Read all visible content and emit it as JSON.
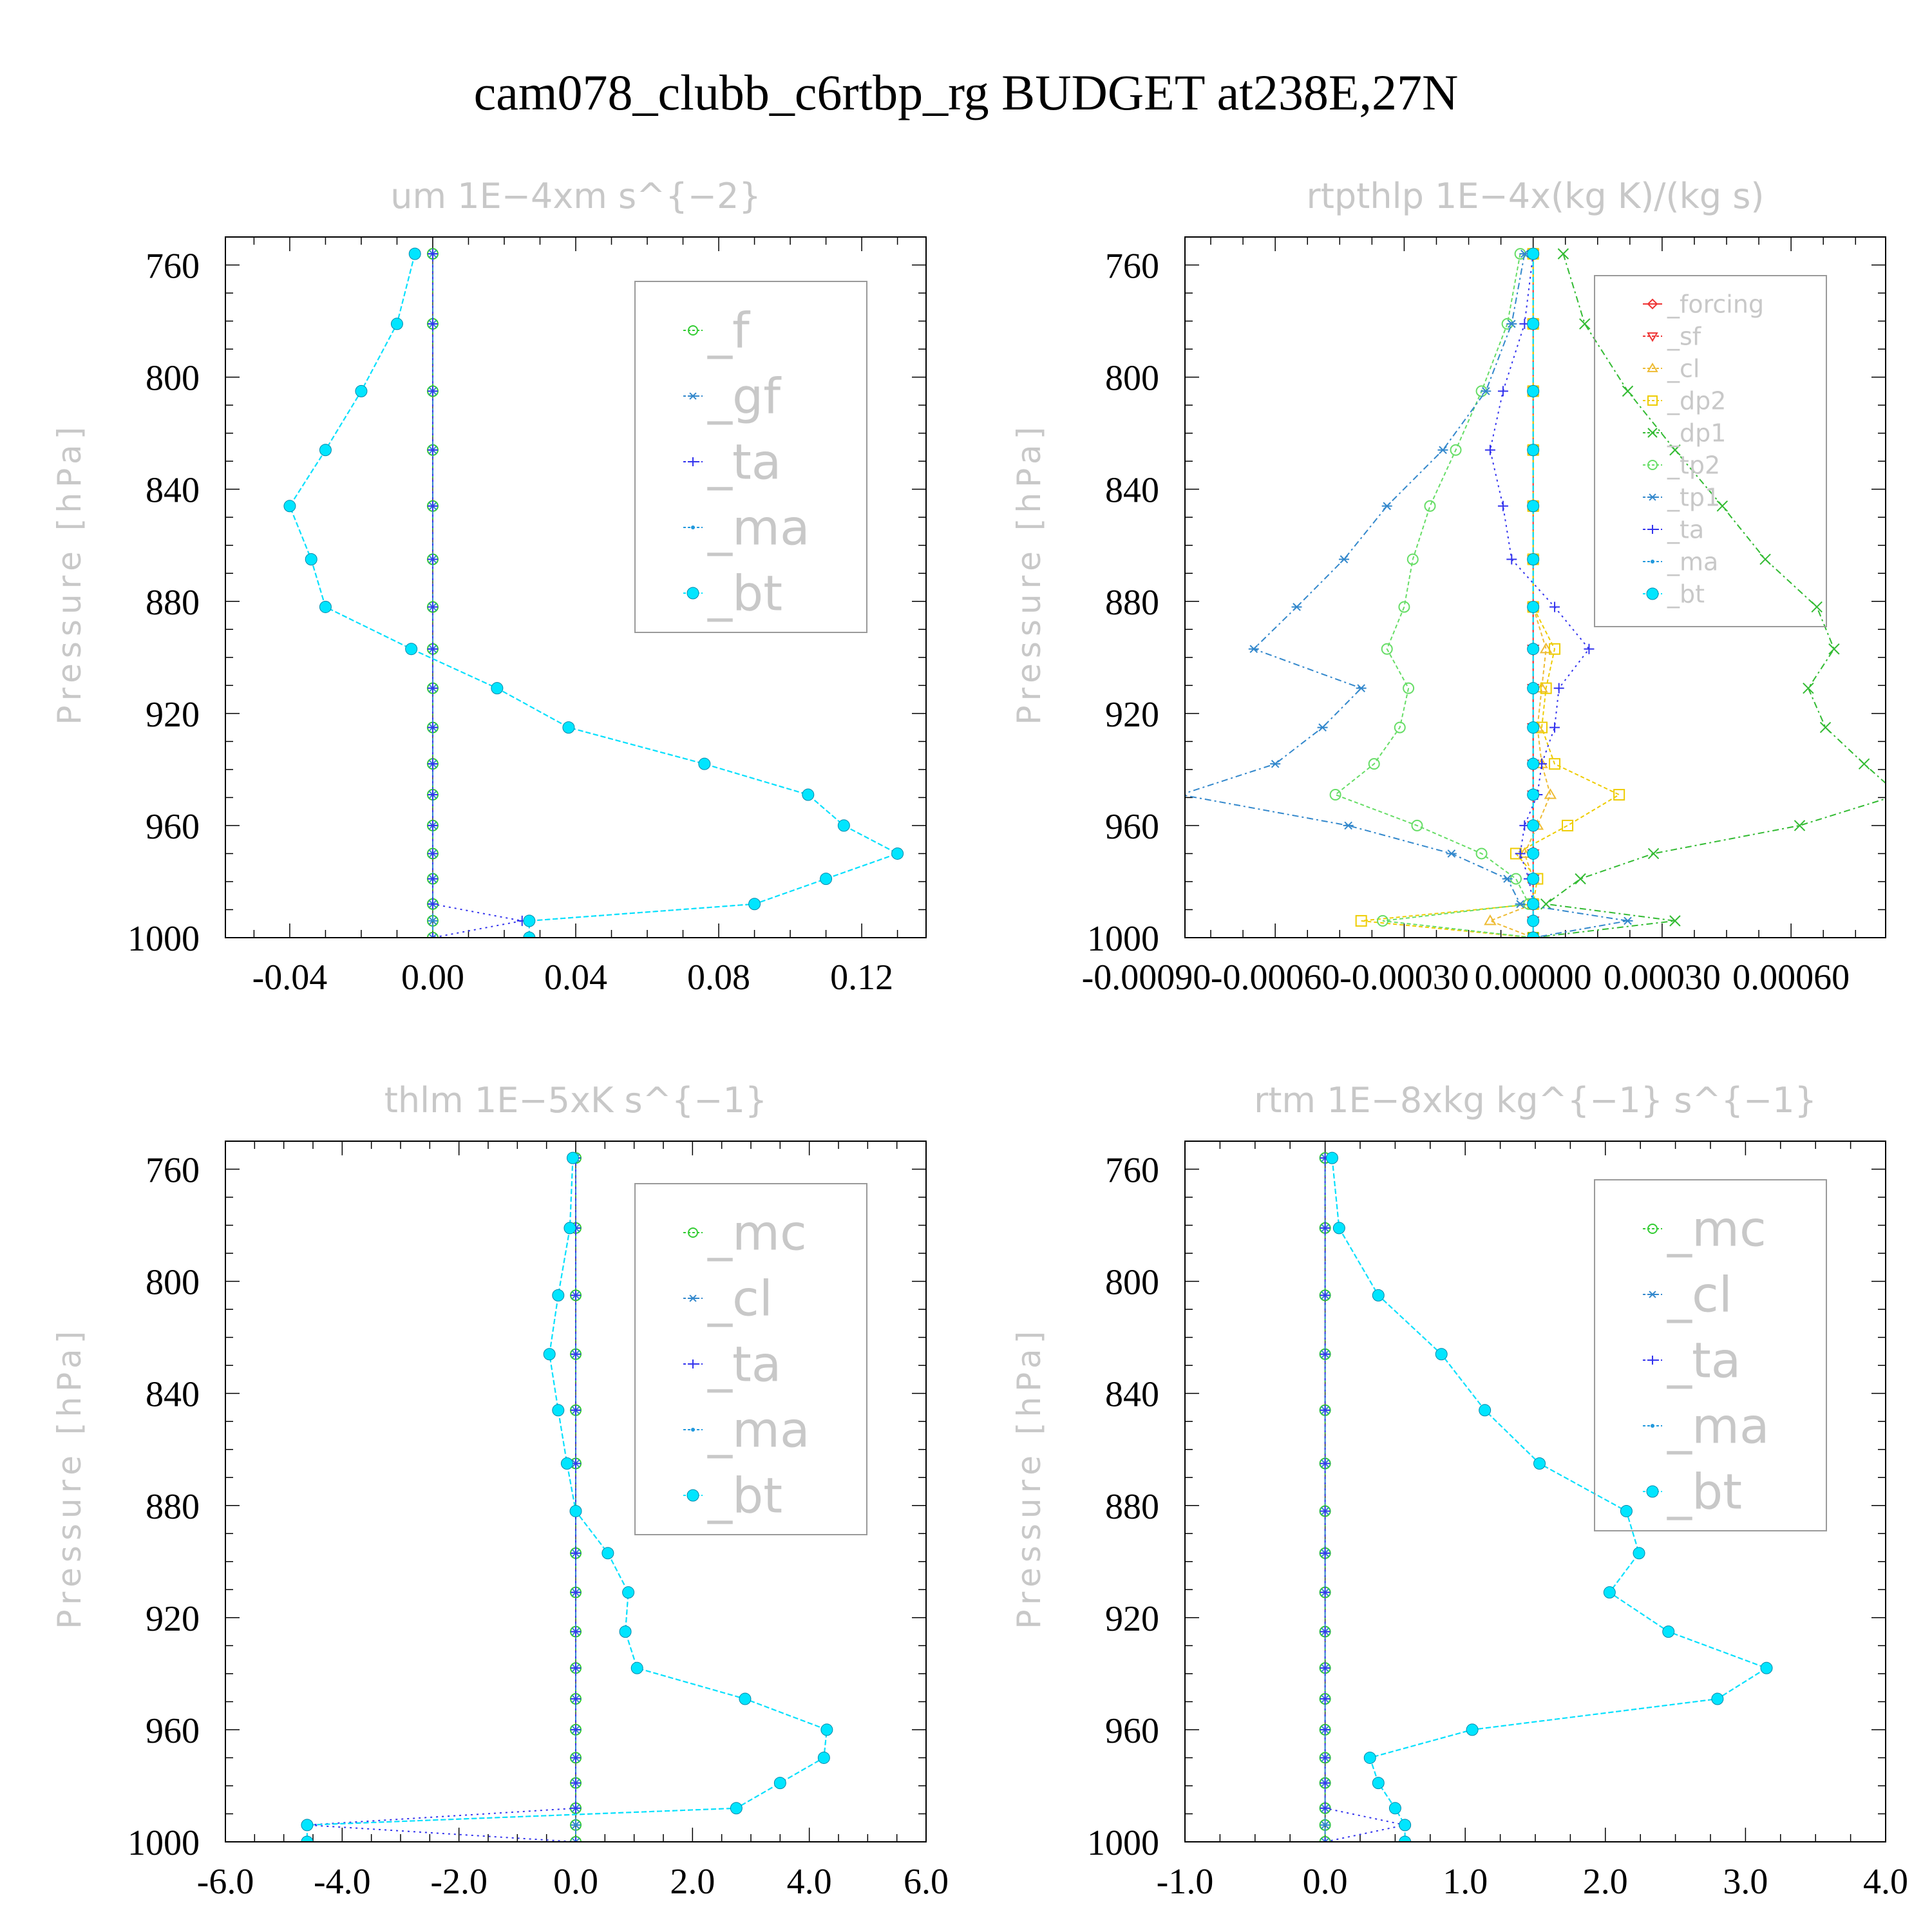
{
  "title": "cam078_clubb_c6rtbp_rg  BUDGET at238E,27N",
  "chart_data": [
    {
      "type": "line",
      "title": "um   1E−4xm s^{−2}",
      "ylabel": "Pressure [hPa]",
      "ylim": [
        750,
        1000
      ],
      "y_inverted": true,
      "xlim": [
        -0.058,
        0.138
      ],
      "xticks": [
        -0.04,
        0.0,
        0.04,
        0.08,
        0.12
      ],
      "xtick_labels": [
        "-0.04",
        "0.00",
        "0.04",
        "0.08",
        "0.12"
      ],
      "yticks": [
        760,
        800,
        840,
        880,
        920,
        960,
        1000
      ],
      "legend_position": "top-right",
      "y": [
        756,
        781,
        805,
        826,
        846,
        865,
        882,
        897,
        911,
        925,
        938,
        949,
        960,
        970,
        979,
        988,
        994,
        1000
      ],
      "series": [
        {
          "name": "_f",
          "color": "#33cc33",
          "marker": "circle-open",
          "dash": "4,4",
          "x": [
            0,
            0,
            0,
            0,
            0,
            0,
            0,
            0,
            0,
            0,
            0,
            0,
            0,
            0,
            0,
            0,
            0,
            0
          ]
        },
        {
          "name": "_gf",
          "color": "#3388cc",
          "marker": "asterisk",
          "dash": "10,6",
          "x": [
            0,
            0,
            0,
            0,
            0,
            0,
            0,
            0,
            0,
            0,
            0,
            0,
            0,
            0,
            0,
            0,
            0,
            0
          ]
        },
        {
          "name": "_ta",
          "color": "#3333ee",
          "marker": "plus",
          "dash": "3,6",
          "x": [
            0,
            0,
            0,
            0,
            0,
            0,
            0,
            0,
            0,
            0,
            0,
            0,
            0,
            0,
            0,
            0,
            0.025,
            0
          ]
        },
        {
          "name": "_ma",
          "color": "#2299dd",
          "marker": "dot",
          "dash": "8,4",
          "x": [
            -0.005,
            -0.01,
            -0.02,
            -0.03,
            -0.04,
            -0.034,
            -0.03,
            -0.006,
            0.018,
            0.038,
            0.076,
            0.105,
            0.115,
            0.13,
            0.11,
            0.09,
            0.027,
            0.027
          ]
        },
        {
          "name": "_bt",
          "color": "#00e5ff",
          "marker": "filled-circle",
          "dash": "8,4",
          "x": [
            -0.005,
            -0.01,
            -0.02,
            -0.03,
            -0.04,
            -0.034,
            -0.03,
            -0.006,
            0.018,
            0.038,
            0.076,
            0.105,
            0.115,
            0.13,
            0.11,
            0.09,
            0.027,
            0.027
          ]
        }
      ]
    },
    {
      "type": "line",
      "title": "rtpthlp   1E−4x(kg K)/(kg s)",
      "ylabel": "Pressure [hPa]",
      "ylim": [
        750,
        1000
      ],
      "y_inverted": true,
      "xlim": [
        -0.00081,
        0.00082
      ],
      "xticks": [
        -0.0009,
        -0.0006,
        -0.0003,
        0.0,
        0.0003,
        0.0006
      ],
      "xtick_labels": [
        "-0.00090",
        "-0.00060",
        "-0.00030",
        "0.00000",
        "0.00030",
        "0.00060"
      ],
      "yticks": [
        760,
        800,
        840,
        880,
        920,
        960,
        1000
      ],
      "legend_position": "top-right",
      "y": [
        756,
        781,
        805,
        826,
        846,
        865,
        882,
        897,
        911,
        925,
        938,
        949,
        960,
        970,
        979,
        988,
        994,
        1000
      ],
      "series": [
        {
          "name": "_forcing",
          "color": "#ee3333",
          "marker": "diamond",
          "dash": "",
          "x": [
            0,
            0,
            0,
            0,
            0,
            0,
            0,
            0,
            0,
            0,
            0,
            0,
            0,
            0,
            0,
            0,
            0,
            0
          ]
        },
        {
          "name": "_sf",
          "color": "#ee3333",
          "marker": "triangle-down",
          "dash": "6,4",
          "x": [
            0,
            0,
            0,
            0,
            0,
            0,
            0,
            0,
            0,
            0,
            0,
            0,
            0,
            0,
            0,
            0,
            0,
            0
          ]
        },
        {
          "name": "_cl",
          "color": "#eebb33",
          "marker": "triangle-up",
          "dash": "6,4",
          "x": [
            0,
            0,
            0,
            0,
            0,
            0,
            0,
            3e-05,
            2e-05,
            1e-05,
            2e-05,
            4e-05,
            1e-05,
            -2e-05,
            0,
            0,
            -0.0001,
            0
          ]
        },
        {
          "name": "_dp2",
          "color": "#eecc00",
          "marker": "square",
          "dash": "6,4",
          "x": [
            0,
            0,
            0,
            0,
            0,
            0,
            0,
            5e-05,
            3e-05,
            2e-05,
            5e-05,
            0.0002,
            8e-05,
            -4e-05,
            1e-05,
            0,
            -0.0004,
            0
          ]
        },
        {
          "name": "_dp1",
          "color": "#33bb33",
          "marker": "x",
          "dash": "10,5,3,5",
          "x": [
            7e-05,
            0.00012,
            0.00022,
            0.00033,
            0.00044,
            0.00054,
            0.00066,
            0.0007,
            0.00064,
            0.00068,
            0.00077,
            0.00085,
            0.00062,
            0.00028,
            0.00011,
            3e-05,
            0.00033,
            0
          ]
        },
        {
          "name": "_tp2",
          "color": "#66dd66",
          "marker": "circle-open",
          "dash": "6,4",
          "x": [
            -3e-05,
            -6e-05,
            -0.00012,
            -0.00018,
            -0.00024,
            -0.00028,
            -0.0003,
            -0.00034,
            -0.00029,
            -0.00031,
            -0.00037,
            -0.00046,
            -0.00027,
            -0.00012,
            -4e-05,
            -1e-05,
            -0.00035,
            0
          ]
        },
        {
          "name": "_tp1",
          "color": "#3388cc",
          "marker": "asterisk",
          "dash": "10,5,3,5",
          "x": [
            -2e-05,
            -5e-05,
            -0.00011,
            -0.00021,
            -0.00034,
            -0.00044,
            -0.00055,
            -0.00065,
            -0.0004,
            -0.00049,
            -0.0006,
            -0.00082,
            -0.00043,
            -0.00019,
            -6e-05,
            -3e-05,
            0.00022,
            0
          ]
        },
        {
          "name": "_ta",
          "color": "#3333ee",
          "marker": "plus",
          "dash": "3,6",
          "x": [
            0,
            -2e-05,
            -7e-05,
            -0.0001,
            -7e-05,
            -5e-05,
            5e-05,
            0.00013,
            6e-05,
            5e-05,
            2e-05,
            1e-05,
            -2e-05,
            -3e-05,
            -1e-05,
            0,
            0,
            0
          ]
        },
        {
          "name": "_ma",
          "color": "#2299dd",
          "marker": "dot",
          "dash": "8,4",
          "x": [
            0,
            0,
            0,
            0,
            0,
            0,
            0,
            0,
            0,
            0,
            0,
            0,
            0,
            0,
            0,
            0,
            0,
            0
          ]
        },
        {
          "name": "_bt",
          "color": "#00e5ff",
          "marker": "filled-circle",
          "dash": "8,4",
          "x": [
            0,
            0,
            0,
            0,
            0,
            0,
            0,
            0,
            0,
            0,
            0,
            0,
            0,
            0,
            0,
            0,
            0,
            0
          ]
        }
      ]
    },
    {
      "type": "line",
      "title": "thlm   1E−5xK s^{−1}",
      "ylabel": "Pressure [hPa]",
      "ylim": [
        750,
        1000
      ],
      "y_inverted": true,
      "xlim": [
        -6.0,
        6.0
      ],
      "xticks": [
        -6.0,
        -4.0,
        -2.0,
        0.0,
        2.0,
        4.0,
        6.0
      ],
      "xtick_labels": [
        "-6.0",
        "-4.0",
        "-2.0",
        "0.0",
        "2.0",
        "4.0",
        "6.0"
      ],
      "yticks": [
        760,
        800,
        840,
        880,
        920,
        960,
        1000
      ],
      "legend_position": "top-right",
      "y": [
        756,
        781,
        805,
        826,
        846,
        865,
        882,
        897,
        911,
        925,
        938,
        949,
        960,
        970,
        979,
        988,
        994,
        1000
      ],
      "series": [
        {
          "name": "_mc",
          "color": "#33cc33",
          "marker": "circle-open",
          "dash": "4,4",
          "x": [
            0,
            0,
            0,
            0,
            0,
            0,
            0,
            0,
            0,
            0,
            0,
            0,
            0,
            0,
            0,
            0,
            0,
            0
          ]
        },
        {
          "name": "_cl",
          "color": "#3388cc",
          "marker": "asterisk",
          "dash": "10,6",
          "x": [
            0,
            0,
            0,
            0,
            0,
            0,
            0,
            0,
            0,
            0,
            0,
            0,
            0,
            0,
            0,
            0,
            0,
            0
          ]
        },
        {
          "name": "_ta",
          "color": "#3333ee",
          "marker": "plus",
          "dash": "3,6",
          "x": [
            0,
            0,
            0,
            0,
            0,
            0,
            0,
            0,
            0,
            0,
            0,
            0,
            0,
            0,
            0,
            0,
            -4.6,
            0
          ]
        },
        {
          "name": "_ma",
          "color": "#2299dd",
          "marker": "dot",
          "dash": "8,4",
          "x": [
            -0.05,
            -0.1,
            -0.3,
            -0.45,
            -0.3,
            -0.15,
            0,
            0.55,
            0.9,
            0.85,
            1.05,
            2.9,
            4.3,
            4.25,
            3.5,
            2.75,
            -4.6,
            -4.6
          ]
        },
        {
          "name": "_bt",
          "color": "#00e5ff",
          "marker": "filled-circle",
          "dash": "8,4",
          "x": [
            -0.05,
            -0.1,
            -0.3,
            -0.45,
            -0.3,
            -0.15,
            0,
            0.55,
            0.9,
            0.85,
            1.05,
            2.9,
            4.3,
            4.25,
            3.5,
            2.75,
            -4.6,
            -4.6
          ]
        }
      ]
    },
    {
      "type": "line",
      "title": "rtm   1E−8xkg kg^{−1} s^{−1}",
      "ylabel": "Pressure [hPa]",
      "ylim": [
        750,
        1000
      ],
      "y_inverted": true,
      "xlim": [
        -1.0,
        4.0
      ],
      "xticks": [
        -1.0,
        0.0,
        1.0,
        2.0,
        3.0,
        4.0
      ],
      "xtick_labels": [
        "-1.0",
        "0.0",
        "1.0",
        "2.0",
        "3.0",
        "4.0"
      ],
      "yticks": [
        760,
        800,
        840,
        880,
        920,
        960,
        1000
      ],
      "legend_position": "top-right",
      "y": [
        756,
        781,
        805,
        826,
        846,
        865,
        882,
        897,
        911,
        925,
        938,
        949,
        960,
        970,
        979,
        988,
        994,
        1000
      ],
      "series": [
        {
          "name": "_mc",
          "color": "#33cc33",
          "marker": "circle-open",
          "dash": "4,4",
          "x": [
            0,
            0,
            0,
            0,
            0,
            0,
            0,
            0,
            0,
            0,
            0,
            0,
            0,
            0,
            0,
            0,
            0,
            0
          ]
        },
        {
          "name": "_cl",
          "color": "#3388cc",
          "marker": "asterisk",
          "dash": "10,6",
          "x": [
            0,
            0,
            0,
            0,
            0,
            0,
            0,
            0,
            0,
            0,
            0,
            0,
            0,
            0,
            0,
            0,
            0,
            0
          ]
        },
        {
          "name": "_ta",
          "color": "#3333ee",
          "marker": "plus",
          "dash": "3,6",
          "x": [
            0,
            0,
            0,
            0,
            0,
            0,
            0,
            0,
            0,
            0,
            0,
            0,
            0,
            0,
            0,
            0,
            0.57,
            0
          ]
        },
        {
          "name": "_ma",
          "color": "#2299dd",
          "marker": "dot",
          "dash": "8,4",
          "x": [
            0.05,
            0.1,
            0.38,
            0.83,
            1.14,
            1.53,
            2.15,
            2.24,
            2.03,
            2.45,
            3.15,
            2.8,
            1.05,
            0.32,
            0.38,
            0.5,
            0.57,
            0.57
          ]
        },
        {
          "name": "_bt",
          "color": "#00e5ff",
          "marker": "filled-circle",
          "dash": "8,4",
          "x": [
            0.05,
            0.1,
            0.38,
            0.83,
            1.14,
            1.53,
            2.15,
            2.24,
            2.03,
            2.45,
            3.15,
            2.8,
            1.05,
            0.32,
            0.38,
            0.5,
            0.57,
            0.57
          ]
        }
      ]
    }
  ]
}
